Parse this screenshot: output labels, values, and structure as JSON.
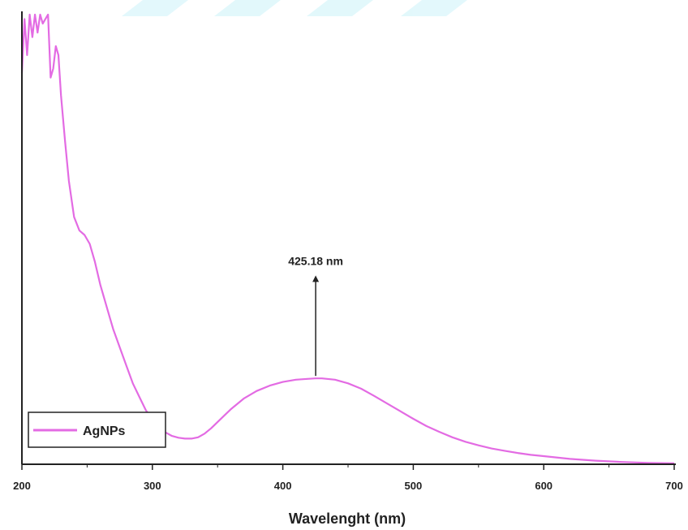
{
  "chart_data": {
    "type": "line",
    "title": "",
    "xlabel": "Wavelenght (nm)",
    "ylabel": "",
    "xlim": [
      200,
      700
    ],
    "ylim": [
      0,
      1.0
    ],
    "xticks": [
      200,
      300,
      400,
      500,
      600,
      700
    ],
    "grid": false,
    "legend": "bottom-left",
    "series": [
      {
        "name": "AgNPs",
        "color": "#e36be3",
        "x": [
          200,
          202,
          204,
          206,
          208,
          210,
          212,
          214,
          216,
          218,
          220,
          222,
          224,
          226,
          228,
          230,
          233,
          236,
          240,
          244,
          248,
          252,
          256,
          260,
          265,
          270,
          275,
          280,
          285,
          290,
          295,
          300,
          305,
          310,
          315,
          320,
          325,
          330,
          335,
          340,
          345,
          350,
          360,
          370,
          380,
          390,
          400,
          410,
          420,
          425,
          430,
          440,
          450,
          460,
          470,
          480,
          490,
          500,
          510,
          520,
          530,
          540,
          550,
          560,
          570,
          580,
          590,
          600,
          620,
          640,
          660,
          680,
          700
        ],
        "values": [
          0.87,
          0.99,
          0.91,
          1.0,
          0.95,
          1.0,
          0.96,
          1.0,
          0.98,
          0.99,
          1.0,
          0.86,
          0.88,
          0.93,
          0.91,
          0.82,
          0.72,
          0.63,
          0.55,
          0.52,
          0.51,
          0.49,
          0.45,
          0.4,
          0.35,
          0.3,
          0.26,
          0.22,
          0.18,
          0.15,
          0.12,
          0.1,
          0.083,
          0.071,
          0.063,
          0.059,
          0.057,
          0.057,
          0.06,
          0.068,
          0.08,
          0.094,
          0.122,
          0.146,
          0.163,
          0.175,
          0.183,
          0.188,
          0.19,
          0.191,
          0.191,
          0.188,
          0.18,
          0.168,
          0.152,
          0.135,
          0.118,
          0.101,
          0.085,
          0.072,
          0.06,
          0.05,
          0.042,
          0.035,
          0.03,
          0.025,
          0.021,
          0.018,
          0.012,
          0.008,
          0.005,
          0.003,
          0.002
        ]
      }
    ],
    "annotations": [
      {
        "text": "425.18 nm",
        "x": 425.18,
        "y": 0.191,
        "arrow_to_y": 0.42
      }
    ]
  }
}
